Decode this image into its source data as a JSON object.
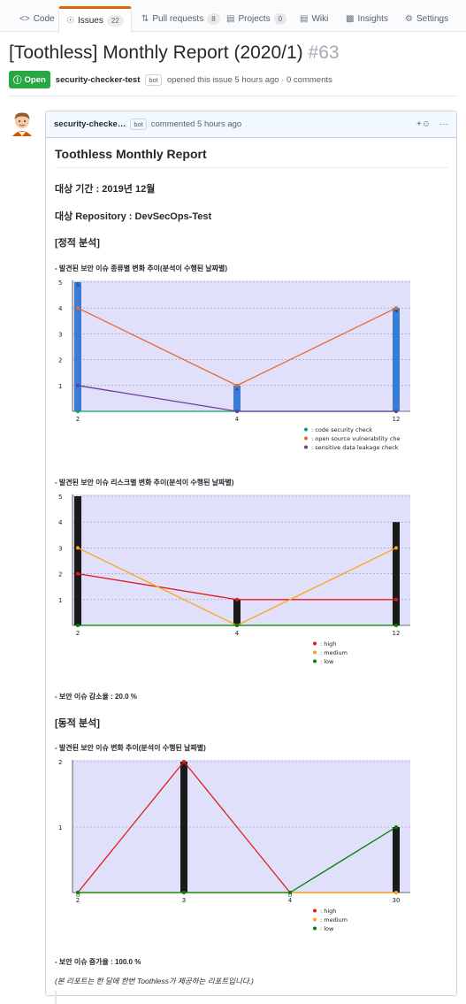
{
  "tabs": [
    {
      "label": "Code",
      "icon": "code-icon"
    },
    {
      "label": "Issues",
      "icon": "issue-opened-icon",
      "count": "22"
    },
    {
      "label": "Pull requests",
      "icon": "pull-request-icon",
      "count": "8"
    },
    {
      "label": "Projects",
      "icon": "project-icon",
      "count": "0"
    },
    {
      "label": "Wiki",
      "icon": "book-icon"
    },
    {
      "label": "Insights",
      "icon": "graph-icon"
    },
    {
      "label": "Settings",
      "icon": "gear-icon"
    }
  ],
  "issue": {
    "title": "[Toothless] Monthly Report (2020/1)",
    "number": "#63",
    "state": "Open",
    "author": "security-checker-test",
    "bot_label": "bot",
    "opened_text": "opened this issue 5 hours ago · 0 comments"
  },
  "comment": {
    "author": "security-checke…",
    "bot_label": "bot",
    "time_text": "commented 5 hours ago",
    "reaction_icon": "smiley-icon",
    "more_icon": "kebab-horizontal-icon"
  },
  "report": {
    "heading": "Toothless Monthly Report",
    "period": "대상 기간 : 2019년 12월",
    "repository": "대상 Repository : DevSecOps-Test",
    "static_section": "[정적 분석]",
    "chart1_title": "- 발견된 보안 이슈 종류별 변화 추이(분석이 수행된 날짜별)",
    "chart2_title": "- 발견된 보안 이슈 리스크별 변화 추이(분석이 수행된 날짜별)",
    "static_reduction": "- 보안 이슈 감소율 : 20.0 %",
    "dynamic_section": "[동적 분석]",
    "chart3_title": "- 발견된 보안 이슈 변화 추이(분석이 수행된 날짜별)",
    "dynamic_increase": "- 보안 이슈 증가율 : 100.0 %",
    "footer_note": "(본 리포트는 한 달에 한번 Toothless가 제공하는 리포트입니다.)"
  },
  "chart_data": [
    {
      "type": "bar",
      "categories": [
        "2",
        "4",
        "12"
      ],
      "values": [
        5,
        1,
        4
      ],
      "bar_color": "#3a7bd5",
      "ylim": [
        0,
        5
      ],
      "yticks": [
        1,
        2,
        3,
        4,
        5
      ],
      "series": [
        {
          "name": ": code security check",
          "type": "line",
          "color": "#00a86b",
          "values": [
            0,
            0,
            0
          ]
        },
        {
          "name": ": open source vulnerability che",
          "type": "line",
          "color": "#e8692c",
          "values": [
            4,
            1,
            4
          ]
        },
        {
          "name": ": sensitive data leakage check",
          "type": "line",
          "color": "#6a3d9a",
          "values": [
            1,
            0,
            0
          ]
        }
      ],
      "legend": "bottom-right",
      "grid": true
    },
    {
      "type": "bar",
      "categories": [
        "2",
        "4",
        "12"
      ],
      "values": [
        5,
        1,
        4
      ],
      "bar_color": "#1a1a1a",
      "ylim": [
        0,
        5
      ],
      "yticks": [
        1,
        2,
        3,
        4,
        5
      ],
      "series": [
        {
          "name": ": high",
          "type": "line",
          "color": "#e31a1c",
          "values": [
            2,
            1,
            1
          ]
        },
        {
          "name": ": medium",
          "type": "line",
          "color": "#ffa31a",
          "values": [
            3,
            0,
            3
          ]
        },
        {
          "name": ": low",
          "type": "line",
          "color": "#008000",
          "values": [
            0,
            0,
            0
          ]
        }
      ],
      "legend": "bottom-right",
      "grid": true
    },
    {
      "type": "bar",
      "categories": [
        "2",
        "3",
        "4",
        "30"
      ],
      "values": [
        0,
        2,
        0,
        1
      ],
      "bar_color": "#1a1a1a",
      "ylim": [
        0,
        2
      ],
      "yticks": [
        1,
        2
      ],
      "series": [
        {
          "name": ": high",
          "type": "line",
          "color": "#e31a1c",
          "values": [
            0,
            2,
            0,
            0
          ]
        },
        {
          "name": ": medium",
          "type": "line",
          "color": "#ffa31a",
          "values": [
            0,
            0,
            0,
            0
          ]
        },
        {
          "name": ": low",
          "type": "line",
          "color": "#008000",
          "values": [
            0,
            0,
            0,
            1
          ]
        }
      ],
      "legend": "bottom-right",
      "grid": true
    }
  ]
}
